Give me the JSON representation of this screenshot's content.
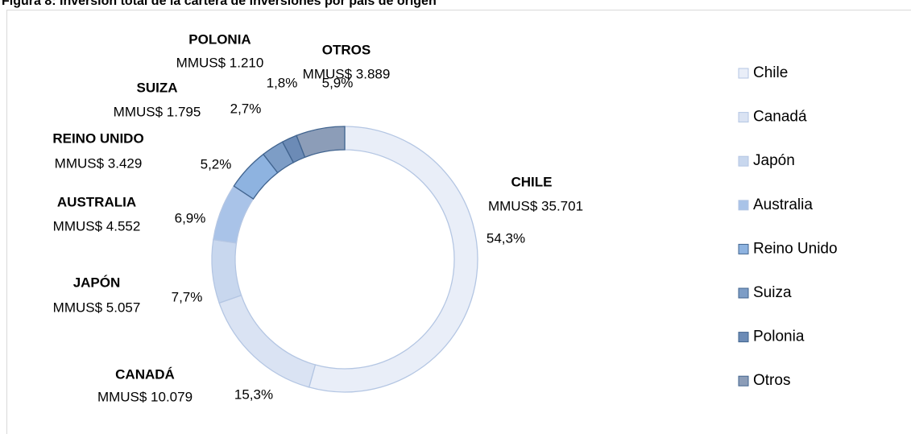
{
  "chart_data": {
    "type": "donut",
    "title": "Figura 8: Inversión total de la cartera de inversiones por país de origen",
    "categories": [
      "Chile",
      "Canadá",
      "Japón",
      "Australia",
      "Reino Unido",
      "Suiza",
      "Polonia",
      "Otros"
    ],
    "labels": [
      "CHILE",
      "CANADÁ",
      "JAPÓN",
      "AUSTRALIA",
      "REINO UNIDO",
      "SUIZA",
      "POLONIA",
      "OTROS"
    ],
    "values": [
      35701,
      10079,
      5057,
      4552,
      3429,
      1795,
      1210,
      3889
    ],
    "value_labels": [
      "MMUS$ 35.701",
      "MMUS$ 10.079",
      "MMUS$ 5.057",
      "MMUS$ 4.552",
      "MMUS$ 3.429",
      "MMUS$ 1.795",
      "MMUS$ 1.210",
      "MMUS$ 3.889"
    ],
    "shares": [
      54.3,
      15.3,
      7.7,
      6.9,
      5.2,
      2.7,
      1.8,
      5.9
    ],
    "share_labels": [
      "54,3%",
      "15,3%",
      "7,7%",
      "6,9%",
      "5,2%",
      "2,7%",
      "1,8%",
      "5,9%"
    ],
    "colors": [
      "#e9eef8",
      "#dae3f3",
      "#c8d7ee",
      "#a9c3e8",
      "#8eb3e0",
      "#7d9dc6",
      "#6c8bb6",
      "#8c9db8"
    ],
    "legend": "right"
  }
}
